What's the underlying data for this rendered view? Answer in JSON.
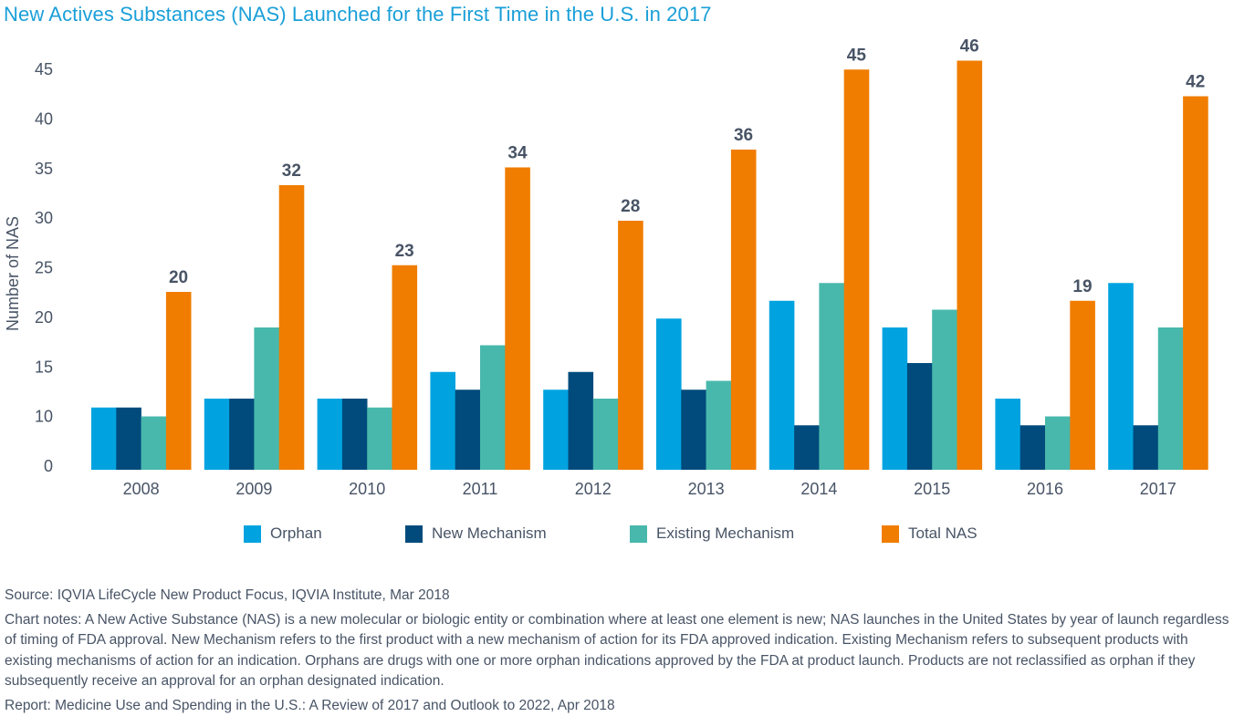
{
  "title": "New Actives Substances (NAS) Launched for the First Time in the U.S. in 2017",
  "chart_data": {
    "type": "bar",
    "title": "New Actives Substances (NAS) Launched for the First Time in the U.S. in 2017",
    "xlabel": "",
    "ylabel": "Number of NAS",
    "categories": [
      "2008",
      "2009",
      "2010",
      "2011",
      "2012",
      "2013",
      "2014",
      "2015",
      "2016",
      "2017"
    ],
    "series": [
      {
        "name": "Orphan",
        "color": "#00a3e0",
        "values": [
          7,
          8,
          8,
          11,
          9,
          17,
          19,
          16,
          8,
          21
        ]
      },
      {
        "name": "New Mechanism",
        "color": "#004b7c",
        "values": [
          7,
          8,
          8,
          9,
          11,
          9,
          5,
          12,
          5,
          5
        ]
      },
      {
        "name": "Existing Mechanism",
        "color": "#48b8ac",
        "values": [
          6,
          16,
          7,
          14,
          8,
          10,
          21,
          18,
          6,
          16
        ]
      },
      {
        "name": "Total NAS",
        "color": "#f07d00",
        "values": [
          20,
          32,
          23,
          34,
          28,
          36,
          45,
          46,
          19,
          42
        ],
        "data_labels": [
          "20",
          "32",
          "23",
          "34",
          "28",
          "36",
          "45",
          "46",
          "19",
          "42"
        ]
      }
    ],
    "yticks": [
      "0",
      "10",
      "15",
      "20",
      "25",
      "30",
      "35",
      "40",
      "45"
    ],
    "ylim": [
      0,
      47
    ],
    "grid": false,
    "legend": "bottom-center"
  },
  "legend": [
    {
      "label": "Orphan",
      "color": "#00a3e0"
    },
    {
      "label": "New Mechanism",
      "color": "#004b7c"
    },
    {
      "label": "Existing Mechanism",
      "color": "#48b8ac"
    },
    {
      "label": "Total NAS",
      "color": "#f07d00"
    }
  ],
  "notes": {
    "source": "Source: IQVIA LifeCycle New Product Focus, IQVIA Institute, Mar 2018",
    "chart_notes": "Chart notes: A New Active Substance (NAS) is a new molecular or biologic entity or combination where at least one element is new; NAS launches in the United States by year of launch regardless of timing of FDA approval. New Mechanism refers to the first product with a new mechanism of action for its FDA approved indication. Existing Mechanism refers to subsequent products with existing mechanisms of action for an indication. Orphans are drugs with one or more orphan indications approved by the FDA at product launch. Products are not reclassified as orphan if they subsequently receive an approval for an orphan designated indication.",
    "report": "Report: Medicine Use and Spending in the U.S.: A Review of 2017 and Outlook to 2022, Apr 2018"
  }
}
